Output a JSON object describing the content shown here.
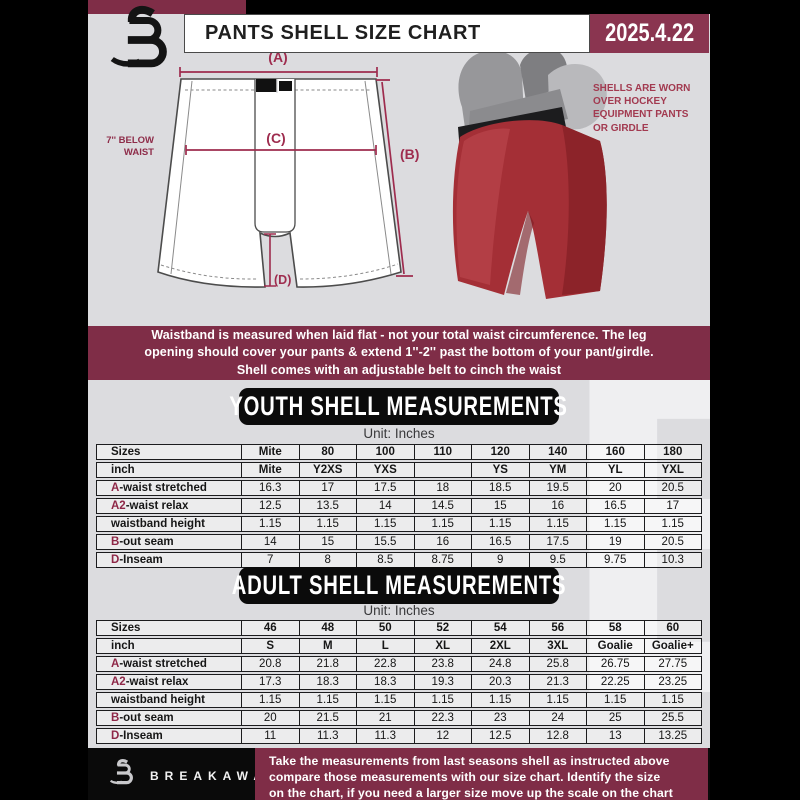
{
  "header": {
    "title": "PANTS SHELL SIZE CHART",
    "date": "2025.4.22"
  },
  "diagram": {
    "label_a": "(A)",
    "label_b": "(B)",
    "label_c": "(C)",
    "label_d": "(D)",
    "waist_note_line1": "7'' BELOW",
    "waist_note_line2": "WAIST"
  },
  "pants_caption": "SHELLS ARE WORN\nOVER HOCKEY\nEQUIPMENT PANTS\nOR GIRDLE",
  "info_banner": "Waistband is measured when laid flat - not your total waist circumference. The leg\nopening should cover your pants & extend 1''-2'' past the bottom of your pant/girdle.\nShell comes with an adjustable belt to cinch the waist",
  "youth": {
    "banner": "YOUTH SHELL MEASUREMENTS",
    "unit": "Unit: Inches",
    "rows": [
      {
        "accent": "",
        "label": "Sizes",
        "bold": true,
        "values": [
          "Mite",
          "80",
          "100",
          "110",
          "120",
          "140",
          "160",
          "180"
        ]
      },
      {
        "accent": "",
        "label": "inch",
        "bold": true,
        "values": [
          "Mite",
          "Y2XS",
          "YXS",
          "",
          "YS",
          "YM",
          "YL",
          "YXL"
        ]
      },
      {
        "accent": "A",
        "label": "-waist stretched",
        "bold": false,
        "values": [
          "16.3",
          "17",
          "17.5",
          "18",
          "18.5",
          "19.5",
          "20",
          "20.5"
        ]
      },
      {
        "accent": "A2",
        "label": "-waist relax",
        "bold": false,
        "values": [
          "12.5",
          "13.5",
          "14",
          "14.5",
          "15",
          "16",
          "16.5",
          "17"
        ]
      },
      {
        "accent": "",
        "label": "waistband height",
        "bold": false,
        "values": [
          "1.15",
          "1.15",
          "1.15",
          "1.15",
          "1.15",
          "1.15",
          "1.15",
          "1.15"
        ]
      },
      {
        "accent": "B",
        "label": "-out seam",
        "bold": false,
        "values": [
          "14",
          "15",
          "15.5",
          "16",
          "16.5",
          "17.5",
          "19",
          "20.5"
        ]
      },
      {
        "accent": "D",
        "label": "-Inseam",
        "bold": false,
        "values": [
          "7",
          "8",
          "8.5",
          "8.75",
          "9",
          "9.5",
          "9.75",
          "10.3"
        ]
      }
    ]
  },
  "adult": {
    "banner": "ADULT SHELL MEASUREMENTS",
    "unit": "Unit: Inches",
    "rows": [
      {
        "accent": "",
        "label": "Sizes",
        "bold": true,
        "values": [
          "46",
          "48",
          "50",
          "52",
          "54",
          "56",
          "58",
          "60"
        ]
      },
      {
        "accent": "",
        "label": "inch",
        "bold": true,
        "values": [
          "S",
          "M",
          "L",
          "XL",
          "2XL",
          "3XL",
          "Goalie",
          "Goalie+"
        ]
      },
      {
        "accent": "A",
        "label": "-waist stretched",
        "bold": false,
        "values": [
          "20.8",
          "21.8",
          "22.8",
          "23.8",
          "24.8",
          "25.8",
          "26.75",
          "27.75"
        ]
      },
      {
        "accent": "A2",
        "label": "-waist relax",
        "bold": false,
        "values": [
          "17.3",
          "18.3",
          "18.3",
          "19.3",
          "20.3",
          "21.3",
          "22.25",
          "23.25"
        ]
      },
      {
        "accent": "",
        "label": "waistband height",
        "bold": false,
        "values": [
          "1.15",
          "1.15",
          "1.15",
          "1.15",
          "1.15",
          "1.15",
          "1.15",
          "1.15"
        ]
      },
      {
        "accent": "B",
        "label": "-out seam",
        "bold": false,
        "values": [
          "20",
          "21.5",
          "21",
          "22.3",
          "23",
          "24",
          "25",
          "25.5"
        ]
      },
      {
        "accent": "D",
        "label": "-Inseam",
        "bold": false,
        "values": [
          "11",
          "11.3",
          "11.3",
          "12",
          "12.5",
          "12.8",
          "13",
          "13.25"
        ]
      }
    ]
  },
  "footer": {
    "brand": "BREAKAWAY",
    "note": "Take the measurements from last seasons shell as instructed above\ncompare those measurements  with our size chart. Identify the size\non the chart, if you need a larger size move up the scale on the chart"
  },
  "watermark_letter": "B",
  "colors": {
    "maroon": "#7f2d47",
    "date_box": "#8a3550",
    "accent": "#9e2c4e",
    "banner_black": "#0b0b0b"
  }
}
